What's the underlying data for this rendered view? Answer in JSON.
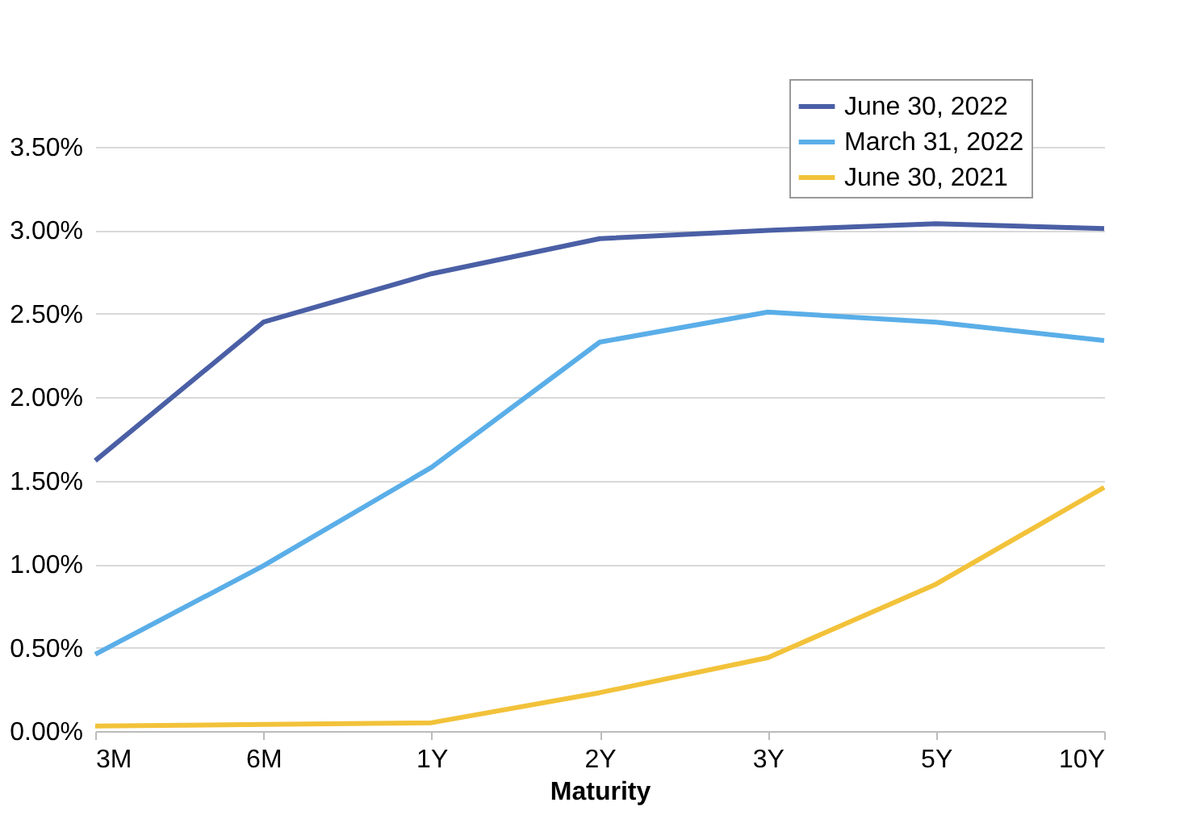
{
  "chart_data": {
    "type": "line",
    "xlabel": "Maturity",
    "categories": [
      "3M",
      "6M",
      "1Y",
      "2Y",
      "3Y",
      "5Y",
      "10Y"
    ],
    "ylim": [
      0,
      3.5
    ],
    "yticks": [
      {
        "value": 0,
        "label": "0.00%"
      },
      {
        "value": 0.5,
        "label": "0.50%"
      },
      {
        "value": 1,
        "label": "1.00%"
      },
      {
        "value": 1.5,
        "label": "1.50%"
      },
      {
        "value": 2,
        "label": "2.00%"
      },
      {
        "value": 2.5,
        "label": "2.50%"
      },
      {
        "value": 3,
        "label": "3.00%"
      },
      {
        "value": 3.5,
        "label": "3.50%"
      }
    ],
    "grid": "y",
    "legend": "top right",
    "line_style": "solid",
    "series": [
      {
        "name": "June 30, 2022",
        "color": "#4a5fa5",
        "values": [
          1.62,
          2.45,
          2.74,
          2.95,
          3.0,
          3.04,
          3.01
        ]
      },
      {
        "name": "March 31, 2022",
        "color": "#5aaee8",
        "values": [
          0.46,
          0.99,
          1.58,
          2.33,
          2.51,
          2.45,
          2.34
        ]
      },
      {
        "name": "June 30, 2021",
        "color": "#f2c23a",
        "values": [
          0.03,
          0.04,
          0.05,
          0.23,
          0.44,
          0.88,
          1.46
        ]
      }
    ]
  }
}
